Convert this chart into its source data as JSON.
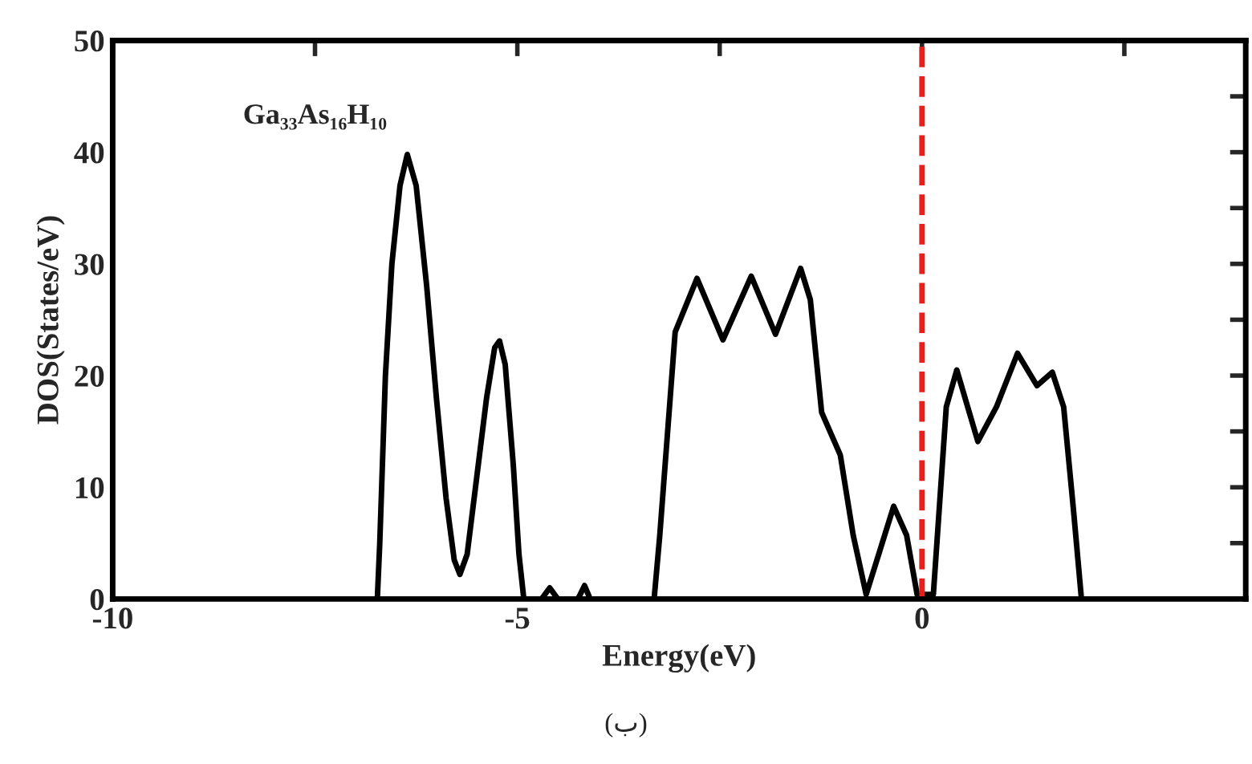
{
  "chart_data": {
    "type": "line",
    "xlabel": "Energy(eV)",
    "ylabel": "DOS(States/eV)",
    "x": [
      -6.73,
      -6.7,
      -6.63,
      -6.55,
      -6.45,
      -6.36,
      -6.25,
      -6.12,
      -6.0,
      -5.88,
      -5.78,
      -5.71,
      -5.62,
      -5.5,
      -5.38,
      -5.28,
      -5.22,
      -5.15,
      -5.05,
      -4.98,
      -4.92,
      -4.7,
      -4.6,
      -4.5,
      -4.25,
      -4.17,
      -4.1,
      -3.31,
      -3.24,
      -3.05,
      -2.78,
      -2.46,
      -2.11,
      -1.81,
      -1.5,
      -1.38,
      -1.24,
      -1.01,
      -0.85,
      -0.69,
      -0.35,
      -0.19,
      -0.06,
      0.14,
      0.3,
      0.43,
      0.69,
      0.92,
      1.18,
      1.42,
      1.61,
      1.75,
      1.87,
      1.97
    ],
    "series": [
      {
        "color": "#000000",
        "values": [
          0,
          5,
          20,
          30,
          37,
          39.8,
          37,
          28,
          18,
          9,
          3.5,
          2.2,
          4,
          11,
          18,
          22.5,
          23.1,
          21,
          12,
          4,
          0,
          0,
          1,
          0,
          0,
          1.2,
          0,
          0,
          5.7,
          23.9,
          28.7,
          23.2,
          28.9,
          23.7,
          29.6,
          26.8,
          16.7,
          12.9,
          5.7,
          0.4,
          8.3,
          5.7,
          0.4,
          0.4,
          17.2,
          20.5,
          14.1,
          17.2,
          22,
          19.1,
          20.3,
          17.2,
          8.1,
          0
        ]
      }
    ],
    "xlim": [
      -10,
      4
    ],
    "ylim": [
      0,
      50
    ],
    "xticks": [
      -10,
      {
        "value": -7.5,
        "label": null
      },
      -5,
      {
        "value": -2.5,
        "label": null
      },
      0,
      {
        "value": 2.5,
        "label": null
      }
    ],
    "yticks": [
      0,
      {
        "value": 5,
        "label": null
      },
      10,
      {
        "value": 15,
        "label": null
      },
      20,
      {
        "value": 25,
        "label": null
      },
      30,
      {
        "value": 35,
        "label": null
      },
      40,
      {
        "value": 45,
        "label": null
      },
      50
    ],
    "ref_lines": [
      {
        "axis": "x",
        "value": 0,
        "color": "#e8201c",
        "line_style": "dashed"
      }
    ],
    "annotations": [
      "Ga₃₃As₁₆H₁₀",
      "(ب)"
    ],
    "grid": false,
    "legend": false,
    "marker": "none",
    "line_style": "solid"
  }
}
